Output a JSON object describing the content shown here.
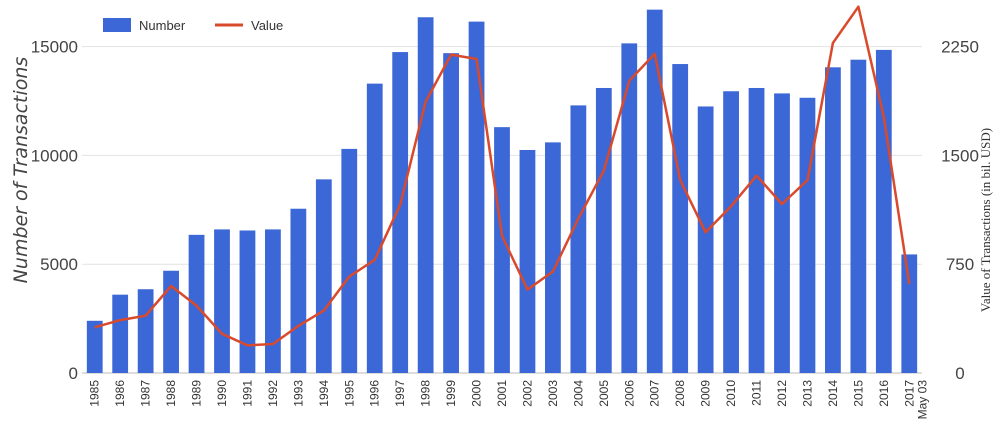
{
  "chart_data": {
    "type": "bar",
    "title": "",
    "categories": [
      "1985",
      "1986",
      "1987",
      "1988",
      "1989",
      "1990",
      "1991",
      "1992",
      "1993",
      "1994",
      "1995",
      "1996",
      "1997",
      "1998",
      "1999",
      "2000",
      "2001",
      "2002",
      "2003",
      "2004",
      "2005",
      "2006",
      "2007",
      "2008",
      "2009",
      "2010",
      "2011",
      "2012",
      "2013",
      "2014",
      "2015",
      "2016",
      "2017"
    ],
    "category_sublabels": {
      "2017": "May 03"
    },
    "ylabel": "Number of Transactions",
    "ylabel_right": "Value of Transactions (in bil. USD)",
    "ylim": [
      0,
      16500
    ],
    "ylim_right": [
      0,
      2475
    ],
    "yticks": [
      0,
      5000,
      10000,
      15000
    ],
    "yticks_right": [
      0,
      750,
      1500,
      2250
    ],
    "grid": true,
    "legend_position": "top-left",
    "series": [
      {
        "name": "Number",
        "kind": "bar",
        "axis": "left",
        "color": "#3c67d6",
        "values": [
          2400,
          3600,
          3850,
          4700,
          6350,
          6600,
          6550,
          6600,
          7550,
          8900,
          10300,
          13300,
          14750,
          16350,
          14700,
          16150,
          11300,
          10250,
          10600,
          12300,
          13100,
          15150,
          16700,
          14200,
          12250,
          12950,
          13100,
          12850,
          12650,
          14050,
          14400,
          14850,
          5450
        ]
      },
      {
        "name": "Value",
        "kind": "line",
        "axis": "right",
        "color": "#d94a2c",
        "values": [
          315,
          365,
          395,
          600,
          465,
          270,
          190,
          200,
          325,
          430,
          665,
          780,
          1160,
          1870,
          2195,
          2165,
          945,
          575,
          700,
          1065,
          1395,
          2015,
          2200,
          1330,
          970,
          1150,
          1360,
          1165,
          1330,
          2275,
          2525,
          1765,
          615
        ]
      }
    ]
  }
}
